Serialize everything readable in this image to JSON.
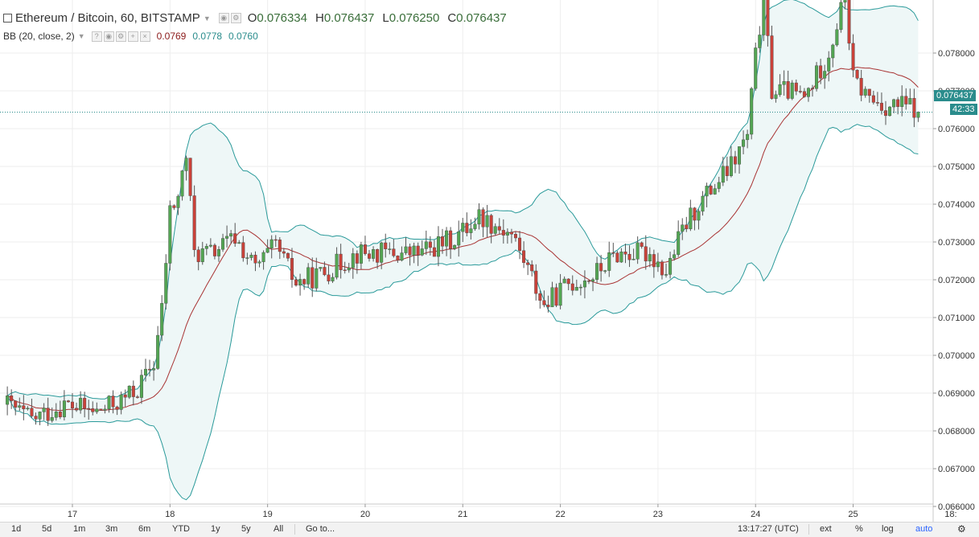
{
  "header": {
    "title": "Ethereum / Bitcoin, 60, BITSTAMP",
    "ohlc": [
      {
        "key": "O",
        "value": "0.076334"
      },
      {
        "key": "H",
        "value": "0.076437"
      },
      {
        "key": "L",
        "value": "0.076250"
      },
      {
        "key": "C",
        "value": "0.076437"
      }
    ]
  },
  "indicator": {
    "label": "BB (20, close, 2)",
    "values": [
      "0.0769",
      "0.0778",
      "0.0760"
    ]
  },
  "price_tag": "0.076437",
  "countdown_tag": "42:33",
  "toolbar": {
    "ranges": [
      "1d",
      "5d",
      "1m",
      "3m",
      "6m",
      "YTD",
      "1y",
      "5y",
      "All"
    ],
    "goto": "Go to...",
    "time": "13:17:27 (UTC)",
    "right": [
      "ext",
      "%",
      "log",
      "auto"
    ]
  },
  "colors": {
    "up": "#53a653",
    "down": "#c9423a",
    "bb_band": "#2a9a9a",
    "bb_basis": "#a83232",
    "bb_fill": "#eef7f7",
    "accent": "#2962ff"
  },
  "chart_data": {
    "type": "candlestick",
    "yaxis": {
      "ticks": [
        "0.066000",
        "0.067000",
        "0.068000",
        "0.069000",
        "0.070000",
        "0.071000",
        "0.072000",
        "0.073000",
        "0.074000",
        "0.075000",
        "0.076000",
        "0.077000",
        "0.078000"
      ],
      "range": [
        0.0657,
        0.0807
      ]
    },
    "xaxis": {
      "ticks": [
        "17",
        "18",
        "19",
        "20",
        "21",
        "22",
        "23",
        "24",
        "25",
        "18:"
      ],
      "range_hours": [
        -16.5,
        169
      ]
    },
    "last_price": 0.076437,
    "anchors": [
      [
        -16,
        0.0687
      ],
      [
        -10,
        0.0683
      ],
      [
        -2,
        0.0687
      ],
      [
        6,
        0.0685
      ],
      [
        12,
        0.0688
      ],
      [
        16,
        0.0691
      ],
      [
        20,
        0.0698
      ],
      [
        22,
        0.0712
      ],
      [
        24,
        0.0738
      ],
      [
        26,
        0.0742
      ],
      [
        28,
        0.0753
      ],
      [
        30,
        0.0727
      ],
      [
        34,
        0.0727
      ],
      [
        40,
        0.0731
      ],
      [
        45,
        0.0723
      ],
      [
        50,
        0.0729
      ],
      [
        55,
        0.0719
      ],
      [
        62,
        0.0722
      ],
      [
        70,
        0.0727
      ],
      [
        85,
        0.0727
      ],
      [
        94,
        0.0731
      ],
      [
        100,
        0.0737
      ],
      [
        108,
        0.0732
      ],
      [
        112,
        0.0723
      ],
      [
        116,
        0.0713
      ],
      [
        122,
        0.0719
      ],
      [
        128,
        0.0721
      ],
      [
        134,
        0.0727
      ],
      [
        142,
        0.0727
      ],
      [
        146,
        0.0722
      ],
      [
        150,
        0.0733
      ],
      [
        154,
        0.074
      ],
      [
        158,
        0.0745
      ],
      [
        162,
        0.075
      ],
      [
        166,
        0.0758
      ],
      [
        168,
        0.0779
      ],
      [
        170,
        0.0795
      ],
      [
        172,
        0.077
      ],
      [
        176,
        0.077
      ],
      [
        180,
        0.0768
      ],
      [
        186,
        0.078
      ],
      [
        190,
        0.0795
      ],
      [
        192,
        0.0773
      ],
      [
        196,
        0.0768
      ],
      [
        200,
        0.0766
      ],
      [
        206,
        0.0766
      ],
      [
        208,
        0.076437
      ]
    ]
  }
}
